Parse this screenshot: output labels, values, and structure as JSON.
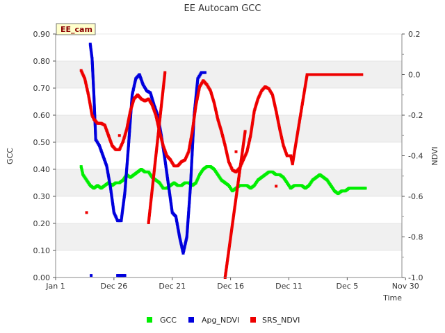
{
  "chart_data": {
    "type": "scatter",
    "title": "EE Autocam GCC",
    "site_badge": "EE_cam",
    "xlabel": "Time",
    "ylabel_left": "GCC",
    "ylabel_right": "NDVI",
    "ylim_left": [
      0.0,
      0.9
    ],
    "ylim_right": [
      -1.0,
      0.2
    ],
    "x_range_days": [
      0,
      190
    ],
    "x_ticks": [
      {
        "label": "Jan 1",
        "day": 0
      },
      {
        "label": "Dec 26",
        "day": 32
      },
      {
        "label": "Dec 21",
        "day": 64
      },
      {
        "label": "Dec 16",
        "day": 96
      },
      {
        "label": "Dec 11",
        "day": 128
      },
      {
        "label": "Dec 5",
        "day": 160
      },
      {
        "label": "Nov 30",
        "day": 192
      }
    ],
    "y_ticks_left": [
      "0.00",
      "0.10",
      "0.20",
      "0.30",
      "0.40",
      "0.50",
      "0.60",
      "0.70",
      "0.80",
      "0.90"
    ],
    "y_ticks_right": [
      "-1.0",
      "-0.8",
      "-0.6",
      "-0.4",
      "-0.2",
      "0.0",
      "0.2"
    ],
    "legend_position": "bottom-center",
    "series": [
      {
        "name": "GCC",
        "axis": "left",
        "color": "#00ee00",
        "points": [
          [
            14,
            0.41
          ],
          [
            15,
            0.38
          ],
          [
            17,
            0.36
          ],
          [
            19,
            0.34
          ],
          [
            21,
            0.33
          ],
          [
            23,
            0.34
          ],
          [
            25,
            0.33
          ],
          [
            27,
            0.34
          ],
          [
            29,
            0.35
          ],
          [
            31,
            0.34
          ],
          [
            33,
            0.35
          ],
          [
            35,
            0.35
          ],
          [
            37,
            0.36
          ],
          [
            39,
            0.38
          ],
          [
            41,
            0.37
          ],
          [
            43,
            0.38
          ],
          [
            45,
            0.39
          ],
          [
            47,
            0.4
          ],
          [
            49,
            0.39
          ],
          [
            51,
            0.39
          ],
          [
            53,
            0.37
          ],
          [
            55,
            0.36
          ],
          [
            57,
            0.35
          ],
          [
            59,
            0.33
          ],
          [
            61,
            0.33
          ],
          [
            63,
            0.34
          ],
          [
            65,
            0.35
          ],
          [
            67,
            0.34
          ],
          [
            69,
            0.34
          ],
          [
            71,
            0.35
          ],
          [
            73,
            0.35
          ],
          [
            75,
            0.34
          ],
          [
            77,
            0.35
          ],
          [
            79,
            0.38
          ],
          [
            81,
            0.4
          ],
          [
            83,
            0.41
          ],
          [
            85,
            0.41
          ],
          [
            87,
            0.4
          ],
          [
            89,
            0.38
          ],
          [
            91,
            0.36
          ],
          [
            93,
            0.35
          ],
          [
            95,
            0.34
          ],
          [
            97,
            0.32
          ],
          [
            99,
            0.33
          ],
          [
            101,
            0.34
          ],
          [
            103,
            0.34
          ],
          [
            105,
            0.34
          ],
          [
            107,
            0.33
          ],
          [
            109,
            0.34
          ],
          [
            111,
            0.36
          ],
          [
            113,
            0.37
          ],
          [
            115,
            0.38
          ],
          [
            117,
            0.39
          ],
          [
            119,
            0.39
          ],
          [
            121,
            0.38
          ],
          [
            123,
            0.38
          ],
          [
            125,
            0.37
          ],
          [
            127,
            0.35
          ],
          [
            129,
            0.33
          ],
          [
            131,
            0.34
          ],
          [
            133,
            0.34
          ],
          [
            135,
            0.34
          ],
          [
            137,
            0.33
          ],
          [
            139,
            0.34
          ],
          [
            141,
            0.36
          ],
          [
            143,
            0.37
          ],
          [
            145,
            0.38
          ],
          [
            147,
            0.37
          ],
          [
            149,
            0.36
          ],
          [
            151,
            0.34
          ],
          [
            153,
            0.32
          ],
          [
            155,
            0.31
          ],
          [
            157,
            0.32
          ],
          [
            159,
            0.32
          ],
          [
            161,
            0.33
          ],
          [
            163,
            0.33
          ],
          [
            165,
            0.33
          ],
          [
            167,
            0.33
          ],
          [
            169,
            0.33
          ],
          [
            170,
            0.33
          ]
        ]
      },
      {
        "name": "Apg_NDVI",
        "axis": "right",
        "color": "#0000dd",
        "points": [
          [
            19,
            0.15
          ],
          [
            20,
            0.08
          ],
          [
            21,
            -0.1
          ],
          [
            22,
            -0.32
          ],
          [
            24,
            -0.35
          ],
          [
            26,
            -0.4
          ],
          [
            28,
            -0.45
          ],
          [
            30,
            -0.55
          ],
          [
            32,
            -0.68
          ],
          [
            34,
            -0.72
          ],
          [
            36,
            -0.72
          ],
          [
            38,
            -0.58
          ],
          [
            40,
            -0.35
          ],
          [
            42,
            -0.1
          ],
          [
            44,
            -0.02
          ],
          [
            46,
            0.0
          ],
          [
            48,
            -0.05
          ],
          [
            50,
            -0.08
          ],
          [
            52,
            -0.09
          ],
          [
            54,
            -0.15
          ],
          [
            56,
            -0.2
          ],
          [
            58,
            -0.3
          ],
          [
            60,
            -0.42
          ],
          [
            62,
            -0.55
          ],
          [
            64,
            -0.68
          ],
          [
            66,
            -0.7
          ],
          [
            68,
            -0.8
          ],
          [
            70,
            -0.88
          ],
          [
            72,
            -0.8
          ],
          [
            74,
            -0.55
          ],
          [
            76,
            -0.2
          ],
          [
            78,
            -0.02
          ],
          [
            80,
            0.01
          ],
          [
            82,
            0.01
          ],
          [
            19.5,
            -0.99
          ],
          [
            34,
            -0.99
          ],
          [
            36,
            -0.99
          ],
          [
            38,
            -0.99
          ]
        ]
      },
      {
        "name": "SRS_NDVI",
        "axis": "right",
        "color": "#ee0000",
        "points": [
          [
            14,
            0.02
          ],
          [
            15,
            0.0
          ],
          [
            16,
            -0.02
          ],
          [
            17,
            -0.06
          ],
          [
            18,
            -0.1
          ],
          [
            19,
            -0.15
          ],
          [
            20,
            -0.2
          ],
          [
            21,
            -0.22
          ],
          [
            23,
            -0.24
          ],
          [
            25,
            -0.24
          ],
          [
            27,
            -0.25
          ],
          [
            29,
            -0.3
          ],
          [
            31,
            -0.35
          ],
          [
            33,
            -0.37
          ],
          [
            35,
            -0.37
          ],
          [
            37,
            -0.33
          ],
          [
            39,
            -0.27
          ],
          [
            41,
            -0.18
          ],
          [
            43,
            -0.12
          ],
          [
            45,
            -0.1
          ],
          [
            47,
            -0.12
          ],
          [
            49,
            -0.13
          ],
          [
            51,
            -0.12
          ],
          [
            53,
            -0.15
          ],
          [
            55,
            -0.2
          ],
          [
            57,
            -0.28
          ],
          [
            59,
            -0.35
          ],
          [
            61,
            -0.4
          ],
          [
            63,
            -0.42
          ],
          [
            65,
            -0.45
          ],
          [
            67,
            -0.45
          ],
          [
            69,
            -0.43
          ],
          [
            71,
            -0.42
          ],
          [
            73,
            -0.38
          ],
          [
            75,
            -0.28
          ],
          [
            77,
            -0.15
          ],
          [
            79,
            -0.06
          ],
          [
            81,
            -0.03
          ],
          [
            83,
            -0.05
          ],
          [
            85,
            -0.08
          ],
          [
            87,
            -0.14
          ],
          [
            89,
            -0.22
          ],
          [
            91,
            -0.28
          ],
          [
            93,
            -0.35
          ],
          [
            95,
            -0.43
          ],
          [
            97,
            -0.47
          ],
          [
            99,
            -0.48
          ],
          [
            101,
            -0.46
          ],
          [
            103,
            -0.42
          ],
          [
            105,
            -0.38
          ],
          [
            107,
            -0.3
          ],
          [
            109,
            -0.18
          ],
          [
            111,
            -0.12
          ],
          [
            113,
            -0.08
          ],
          [
            115,
            -0.06
          ],
          [
            117,
            -0.07
          ],
          [
            119,
            -0.1
          ],
          [
            121,
            -0.18
          ],
          [
            123,
            -0.27
          ],
          [
            125,
            -0.35
          ],
          [
            127,
            -0.4
          ],
          [
            129,
            -0.4
          ],
          [
            130,
            -0.44
          ],
          [
            138,
            0.0
          ],
          [
            145,
            0.0
          ],
          [
            155,
            0.0
          ],
          [
            165,
            0.0
          ],
          [
            168,
            0.0
          ],
          [
            17,
            -0.68
          ],
          [
            35,
            -0.3
          ],
          [
            51,
            -0.73
          ],
          [
            60,
            0.01
          ],
          [
            93,
            -1.0
          ],
          [
            104,
            -0.28
          ],
          [
            121,
            -0.55
          ],
          [
            99,
            -0.38
          ]
        ]
      }
    ]
  }
}
